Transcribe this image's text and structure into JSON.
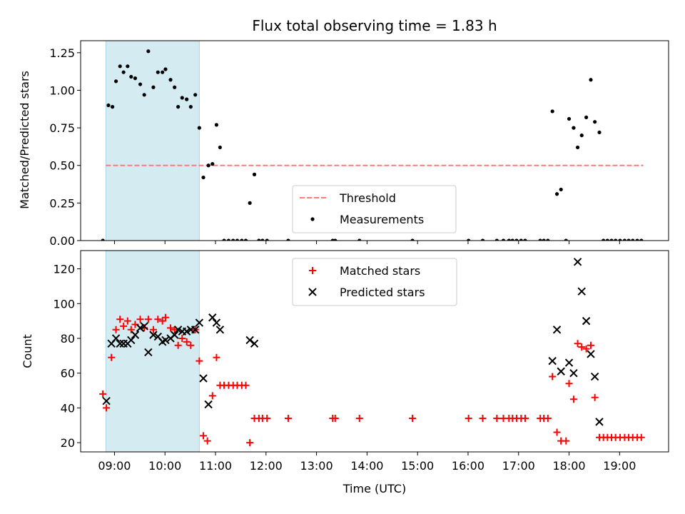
{
  "chart_data": [
    {
      "type": "scatter",
      "title": "Flux total observing time = 1.83 h",
      "xlabel": "",
      "ylabel": "Matched/Predicted stars",
      "x_unit": "hour of day (UTC)",
      "xlim": [
        8.33,
        19.97
      ],
      "ylim": [
        0.0,
        1.33
      ],
      "yticks": [
        0.0,
        0.25,
        0.5,
        0.75,
        1.0,
        1.25
      ],
      "ytick_labels": [
        "0.00",
        "0.25",
        "0.50",
        "0.75",
        "1.00",
        "1.25"
      ],
      "shaded_span": {
        "x": [
          8.83,
          10.68
        ],
        "color": "#d4ebf1"
      },
      "threshold": {
        "name": "Threshold",
        "value": 0.5,
        "x": [
          8.83,
          19.47
        ],
        "color": "#ff7b7b"
      },
      "series": [
        {
          "name": "Measurements",
          "marker": "dot",
          "color": "#000000",
          "points": [
            [
              8.77,
              0.0
            ],
            [
              8.88,
              0.9
            ],
            [
              8.96,
              0.89
            ],
            [
              9.03,
              1.06
            ],
            [
              9.11,
              1.16
            ],
            [
              9.18,
              1.12
            ],
            [
              9.26,
              1.16
            ],
            [
              9.33,
              1.09
            ],
            [
              9.41,
              1.08
            ],
            [
              9.51,
              1.04
            ],
            [
              9.59,
              0.97
            ],
            [
              9.67,
              1.26
            ],
            [
              9.77,
              1.02
            ],
            [
              9.86,
              1.12
            ],
            [
              9.95,
              1.12
            ],
            [
              10.01,
              1.14
            ],
            [
              10.11,
              1.07
            ],
            [
              10.19,
              1.02
            ],
            [
              10.26,
              0.89
            ],
            [
              10.34,
              0.95
            ],
            [
              10.43,
              0.94
            ],
            [
              10.51,
              0.89
            ],
            [
              10.6,
              0.97
            ],
            [
              10.68,
              0.75
            ],
            [
              10.76,
              0.42
            ],
            [
              10.86,
              0.5
            ],
            [
              10.94,
              0.51
            ],
            [
              11.02,
              0.77
            ],
            [
              11.09,
              0.62
            ],
            [
              11.17,
              0.0
            ],
            [
              11.26,
              0.0
            ],
            [
              11.35,
              0.0
            ],
            [
              11.43,
              0.0
            ],
            [
              11.52,
              0.0
            ],
            [
              11.6,
              0.0
            ],
            [
              11.68,
              0.25
            ],
            [
              11.77,
              0.44
            ],
            [
              11.86,
              0.0
            ],
            [
              11.93,
              0.0
            ],
            [
              12.02,
              0.0
            ],
            [
              12.44,
              0.0
            ],
            [
              13.32,
              0.0
            ],
            [
              13.37,
              0.0
            ],
            [
              13.85,
              0.0
            ],
            [
              14.9,
              0.0
            ],
            [
              16.01,
              0.0
            ],
            [
              16.29,
              0.0
            ],
            [
              16.57,
              0.0
            ],
            [
              16.7,
              0.0
            ],
            [
              16.81,
              0.0
            ],
            [
              16.88,
              0.0
            ],
            [
              16.96,
              0.0
            ],
            [
              17.05,
              0.0
            ],
            [
              17.13,
              0.0
            ],
            [
              17.43,
              0.0
            ],
            [
              17.5,
              0.0
            ],
            [
              17.58,
              0.0
            ],
            [
              17.67,
              0.86
            ],
            [
              17.76,
              0.31
            ],
            [
              17.84,
              0.34
            ],
            [
              17.94,
              0.0
            ],
            [
              18.0,
              0.81
            ],
            [
              18.09,
              0.75
            ],
            [
              18.17,
              0.62
            ],
            [
              18.25,
              0.7
            ],
            [
              18.34,
              0.82
            ],
            [
              18.43,
              1.07
            ],
            [
              18.51,
              0.79
            ],
            [
              18.6,
              0.72
            ],
            [
              18.68,
              0.0
            ],
            [
              18.76,
              0.0
            ],
            [
              18.84,
              0.0
            ],
            [
              18.92,
              0.0
            ],
            [
              19.01,
              0.0
            ],
            [
              19.1,
              0.0
            ],
            [
              19.18,
              0.0
            ],
            [
              19.26,
              0.0
            ],
            [
              19.35,
              0.0
            ],
            [
              19.43,
              0.0
            ]
          ]
        }
      ],
      "legend": {
        "position": "lower-center",
        "entries": [
          "Threshold",
          "Measurements"
        ]
      }
    },
    {
      "type": "scatter",
      "title": "",
      "xlabel": "Time (UTC)",
      "ylabel": "Count",
      "x_unit": "hour of day (UTC)",
      "xlim": [
        8.33,
        19.97
      ],
      "ylim": [
        14.7,
        130.5
      ],
      "yticks": [
        20,
        40,
        60,
        80,
        100,
        120
      ],
      "ytick_labels": [
        "20",
        "40",
        "60",
        "80",
        "100",
        "120"
      ],
      "xticks": [
        9,
        10,
        11,
        12,
        13,
        14,
        15,
        16,
        17,
        18,
        19
      ],
      "xtick_labels": [
        "09:00",
        "10:00",
        "11:00",
        "12:00",
        "13:00",
        "14:00",
        "15:00",
        "16:00",
        "17:00",
        "18:00",
        "19:00"
      ],
      "shaded_span": {
        "x": [
          8.83,
          10.68
        ],
        "color": "#d4ebf1"
      },
      "series": [
        {
          "name": "Matched stars",
          "marker": "plus",
          "color": "#ff0000",
          "points": [
            [
              8.77,
              48
            ],
            [
              8.84,
              40
            ],
            [
              8.94,
              69
            ],
            [
              9.03,
              85
            ],
            [
              9.11,
              91
            ],
            [
              9.18,
              87
            ],
            [
              9.26,
              90
            ],
            [
              9.33,
              85
            ],
            [
              9.41,
              88
            ],
            [
              9.51,
              91
            ],
            [
              9.59,
              86
            ],
            [
              9.67,
              91
            ],
            [
              9.77,
              85
            ],
            [
              9.86,
              91
            ],
            [
              9.95,
              90
            ],
            [
              10.01,
              92
            ],
            [
              10.11,
              86
            ],
            [
              10.19,
              85
            ],
            [
              10.26,
              76
            ],
            [
              10.34,
              80
            ],
            [
              10.43,
              78
            ],
            [
              10.51,
              76
            ],
            [
              10.6,
              85
            ],
            [
              10.68,
              67
            ],
            [
              10.76,
              24
            ],
            [
              10.84,
              21
            ],
            [
              10.94,
              47
            ],
            [
              11.02,
              69
            ],
            [
              11.09,
              53
            ],
            [
              11.17,
              53
            ],
            [
              11.26,
              53
            ],
            [
              11.35,
              53
            ],
            [
              11.43,
              53
            ],
            [
              11.52,
              53
            ],
            [
              11.6,
              53
            ],
            [
              11.68,
              20
            ],
            [
              11.77,
              34
            ],
            [
              11.86,
              34
            ],
            [
              11.93,
              34
            ],
            [
              12.02,
              34
            ],
            [
              12.44,
              34
            ],
            [
              13.32,
              34
            ],
            [
              13.37,
              34
            ],
            [
              13.85,
              34
            ],
            [
              14.9,
              34
            ],
            [
              16.01,
              34
            ],
            [
              16.29,
              34
            ],
            [
              16.57,
              34
            ],
            [
              16.7,
              34
            ],
            [
              16.81,
              34
            ],
            [
              16.88,
              34
            ],
            [
              16.96,
              34
            ],
            [
              17.05,
              34
            ],
            [
              17.13,
              34
            ],
            [
              17.43,
              34
            ],
            [
              17.5,
              34
            ],
            [
              17.58,
              34
            ],
            [
              17.67,
              58
            ],
            [
              17.76,
              26
            ],
            [
              17.84,
              21
            ],
            [
              17.94,
              21
            ],
            [
              18.0,
              54
            ],
            [
              18.09,
              45
            ],
            [
              18.17,
              77
            ],
            [
              18.25,
              75
            ],
            [
              18.34,
              74
            ],
            [
              18.43,
              76
            ],
            [
              18.51,
              46
            ],
            [
              18.6,
              23
            ],
            [
              18.68,
              23
            ],
            [
              18.76,
              23
            ],
            [
              18.84,
              23
            ],
            [
              18.92,
              23
            ],
            [
              19.01,
              23
            ],
            [
              19.1,
              23
            ],
            [
              19.18,
              23
            ],
            [
              19.26,
              23
            ],
            [
              19.35,
              23
            ],
            [
              19.43,
              23
            ]
          ]
        },
        {
          "name": "Predicted stars",
          "marker": "x",
          "color": "#000000",
          "points": [
            [
              8.84,
              44
            ],
            [
              8.94,
              77
            ],
            [
              9.03,
              80
            ],
            [
              9.11,
              77
            ],
            [
              9.18,
              77
            ],
            [
              9.26,
              77
            ],
            [
              9.33,
              79
            ],
            [
              9.41,
              82
            ],
            [
              9.51,
              86
            ],
            [
              9.59,
              87
            ],
            [
              9.67,
              72
            ],
            [
              9.77,
              82
            ],
            [
              9.86,
              81
            ],
            [
              9.95,
              78
            ],
            [
              10.01,
              79
            ],
            [
              10.11,
              80
            ],
            [
              10.19,
              82
            ],
            [
              10.26,
              85
            ],
            [
              10.34,
              84
            ],
            [
              10.43,
              84
            ],
            [
              10.51,
              85
            ],
            [
              10.6,
              85
            ],
            [
              10.68,
              89
            ],
            [
              10.76,
              57
            ],
            [
              10.86,
              42
            ],
            [
              10.94,
              92
            ],
            [
              11.02,
              89
            ],
            [
              11.09,
              85
            ],
            [
              11.68,
              79
            ],
            [
              11.77,
              77
            ],
            [
              17.67,
              67
            ],
            [
              17.76,
              85
            ],
            [
              17.84,
              61
            ],
            [
              18.0,
              66
            ],
            [
              18.09,
              60
            ],
            [
              18.17,
              124
            ],
            [
              18.25,
              107
            ],
            [
              18.34,
              90
            ],
            [
              18.43,
              71
            ],
            [
              18.51,
              58
            ],
            [
              18.6,
              32
            ]
          ]
        }
      ],
      "legend": {
        "position": "upper-center",
        "entries": [
          "Matched stars",
          "Predicted stars"
        ]
      }
    }
  ]
}
